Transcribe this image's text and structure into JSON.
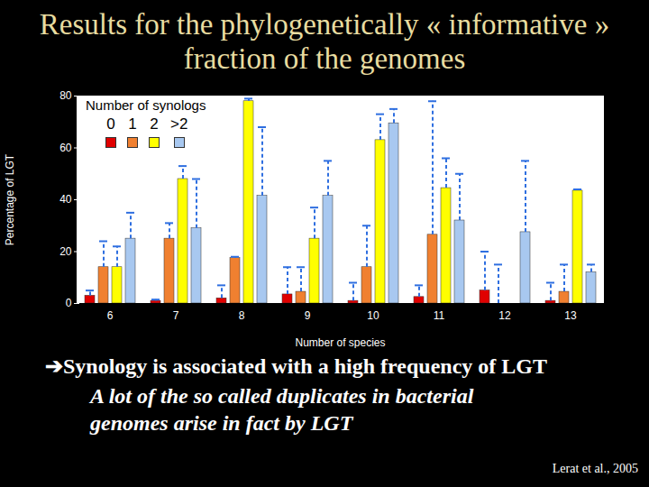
{
  "chart_data": {
    "type": "bar",
    "title": "Results for the phylogenetically « informative » fraction of the genomes",
    "x_label": "Number of species",
    "y_label": "Percentage of LGT",
    "legend_title": "Number of synologs",
    "legend": "top-left",
    "categories": [
      6,
      7,
      8,
      9,
      10,
      11,
      12,
      13
    ],
    "series": [
      {
        "name": "0",
        "color": "#e00000",
        "values": [
          3,
          1,
          2,
          3.5,
          1,
          2.5,
          5,
          1
        ],
        "errors_plus": [
          2,
          0.5,
          5,
          10.5,
          7,
          4.5,
          15,
          7
        ]
      },
      {
        "name": "1",
        "color": "#f08030",
        "values": [
          14,
          25,
          17.5,
          4.5,
          14,
          26.5,
          0,
          4.5
        ],
        "errors_plus": [
          10,
          6,
          0.5,
          9.5,
          16,
          51.5,
          15,
          10.5
        ]
      },
      {
        "name": "2",
        "color": "#ffff00",
        "values": [
          14,
          48,
          78,
          25,
          63,
          44.5,
          0,
          43.5
        ],
        "errors_plus": [
          8,
          5,
          1,
          12,
          10,
          11.5,
          0,
          0.5
        ]
      },
      {
        "name": ">2",
        "color": "#a8c8f0",
        "values": [
          25,
          29,
          41.5,
          41.5,
          69.5,
          32,
          27.5,
          12
        ],
        "errors_plus": [
          10,
          19,
          26.5,
          13.5,
          5.5,
          18,
          27.5,
          3
        ]
      }
    ],
    "ylim": [
      0,
      80
    ],
    "yticks": [
      0,
      20,
      40,
      60,
      80
    ],
    "grid": false,
    "annotations": [
      "➔Synology is associated with a high frequency of LGT",
      "A lot of the so called duplicates in bacterial genomes arise in fact by LGT",
      "Lerat et al., 2005"
    ]
  }
}
